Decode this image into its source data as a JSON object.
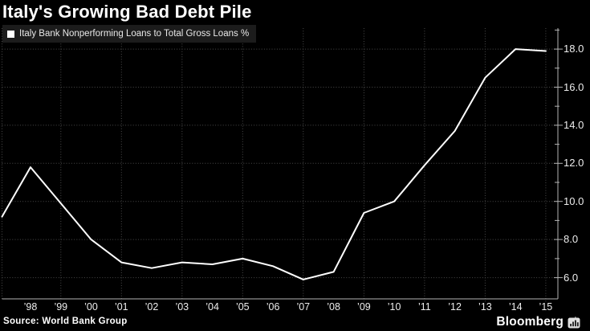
{
  "title": "Italy's Growing Bad Debt Pile",
  "legend": {
    "marker": "square-marker",
    "label": "Italy Bank Nonperforming Loans to Total Gross Loans %"
  },
  "source": "Source: World Bank Group",
  "brand": {
    "name": "Bloomberg"
  },
  "colors": {
    "background": "#000000",
    "line": "#ffffff",
    "axis": "#b3b3b3",
    "grid": "#4a4a4a",
    "legend_bg": "#1c1c1c",
    "text": "#ededed"
  },
  "chart_data": {
    "type": "line",
    "title": "Italy's Growing Bad Debt Pile",
    "series": [
      {
        "name": "Italy Bank Nonperforming Loans to Total Gross Loans %",
        "x": [
          1997,
          1998,
          1999,
          2000,
          2001,
          2002,
          2003,
          2004,
          2005,
          2006,
          2007,
          2008,
          2009,
          2010,
          2011,
          2012,
          2013,
          2014,
          2015
        ],
        "values": [
          9.2,
          11.8,
          9.9,
          8.0,
          6.8,
          6.5,
          6.8,
          6.7,
          7.0,
          6.6,
          5.9,
          6.3,
          9.4,
          10.0,
          11.9,
          13.7,
          16.5,
          18.0,
          17.9
        ]
      }
    ],
    "x_tick_years": [
      1998,
      1999,
      2000,
      2001,
      2002,
      2003,
      2004,
      2005,
      2006,
      2007,
      2008,
      2009,
      2010,
      2011,
      2012,
      2013,
      2014,
      2015
    ],
    "x_tick_labels": [
      "’98",
      "’99",
      "’00",
      "’01",
      "’02",
      "’03",
      "’04",
      "’05",
      "’06",
      "’07",
      "’08",
      "’09",
      "’10",
      "’11",
      "’12",
      "’13",
      "’14",
      "’15"
    ],
    "y_tick_values": [
      6,
      8,
      10,
      12,
      14,
      16,
      18
    ],
    "y_tick_labels": [
      "6.0",
      "8.0",
      "10.0",
      "12.0",
      "14.0",
      "16.0",
      "18.0"
    ],
    "xlabel": "",
    "ylabel": "",
    "xlim": [
      1997,
      2015.4
    ],
    "ylim": [
      5.0,
      19.1
    ],
    "grid": true,
    "grid_vertical_years": [
      1999,
      2001,
      2003,
      2005,
      2007,
      2009,
      2011,
      2013,
      2015
    ],
    "y_axis_side": "right",
    "legend_position": "top-left"
  }
}
